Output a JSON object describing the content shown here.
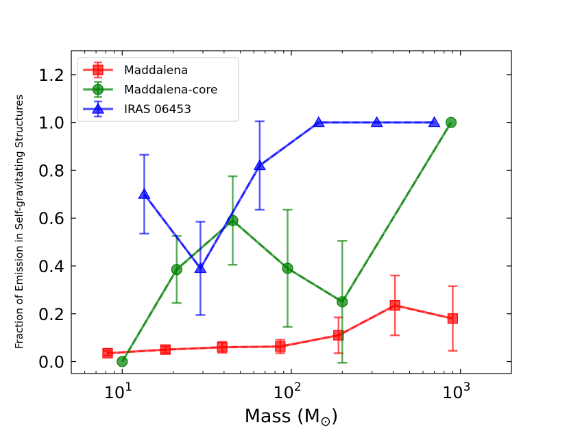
{
  "chart_data": {
    "type": "line",
    "xscale": "log",
    "xlabel": "Mass (M",
    "xlabel_sub": "⊙",
    "xlabel_close": ")",
    "ylabel": "Fraction of Emission in Self-gravitating Structures",
    "xlim": [
      5,
      2000
    ],
    "ylim": [
      -0.05,
      1.3
    ],
    "x_ticks": [
      {
        "value": 10,
        "base": "10",
        "exp": "1"
      },
      {
        "value": 100,
        "base": "10",
        "exp": "2"
      },
      {
        "value": 1000,
        "base": "10",
        "exp": "3"
      }
    ],
    "y_ticks": [
      "0.0",
      "0.2",
      "0.4",
      "0.6",
      "0.8",
      "1.0",
      "1.2"
    ],
    "legend_position": "top-left",
    "series": [
      {
        "name": "Maddalena",
        "marker": "square",
        "color": "#ff0000",
        "x": [
          8.2,
          18,
          39,
          86,
          190,
          410,
          900
        ],
        "y": [
          0.035,
          0.05,
          0.06,
          0.063,
          0.11,
          0.235,
          0.18
        ],
        "err": [
          0.01,
          0.013,
          0.023,
          0.028,
          0.075,
          0.125,
          0.135
        ]
      },
      {
        "name": "Maddalena-core",
        "marker": "circle",
        "color": "#008000",
        "x": [
          10,
          21,
          45,
          95,
          200,
          880
        ],
        "y": [
          0.0,
          0.385,
          0.59,
          0.39,
          0.25,
          1.0
        ],
        "err": [
          0.0,
          0.14,
          0.185,
          0.245,
          0.255,
          0.0
        ]
      },
      {
        "name": "IRAS 06453",
        "marker": "triangle",
        "color": "#0000ff",
        "x": [
          13.5,
          29,
          65,
          145,
          320,
          700
        ],
        "y": [
          0.7,
          0.39,
          0.82,
          1.0,
          1.0,
          1.0
        ],
        "err": [
          0.165,
          0.195,
          0.185,
          0.0,
          0.0,
          0.0
        ]
      }
    ]
  }
}
